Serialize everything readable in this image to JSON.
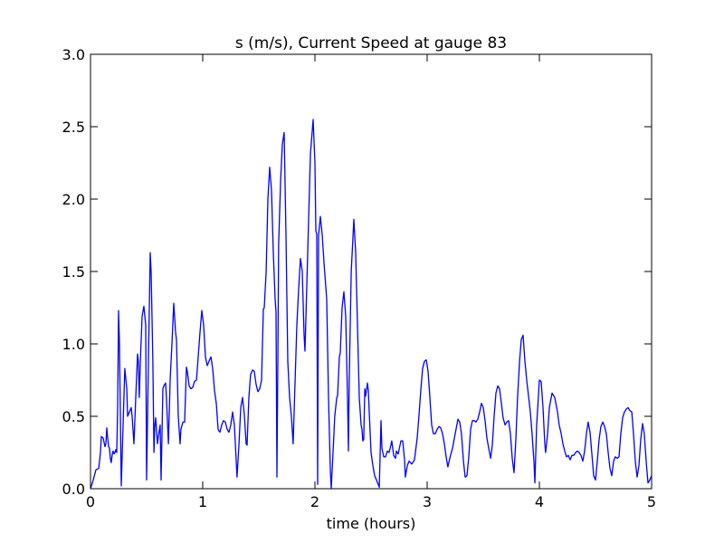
{
  "chart_data": {
    "type": "line",
    "title": "s (m/s), Current Speed at gauge 83",
    "xlabel": "time (hours)",
    "ylabel": "",
    "xlim": [
      0,
      5
    ],
    "ylim": [
      0,
      3.0
    ],
    "xticks": [
      "0",
      "1",
      "2",
      "3",
      "4",
      "5"
    ],
    "yticks": [
      "0.0",
      "0.5",
      "1.0",
      "1.5",
      "2.0",
      "2.5",
      "3.0"
    ],
    "grid": false,
    "series_color": "#0000ff",
    "reference_line": {
      "y": 0,
      "style": "dashed",
      "color": "#000000"
    },
    "x": [
      0,
      0.024,
      0.048,
      0.073,
      0.089,
      0.097,
      0.113,
      0.129,
      0.137,
      0.145,
      0.153,
      0.161,
      0.169,
      0.177,
      0.185,
      0.194,
      0.202,
      0.21,
      0.218,
      0.226,
      0.234,
      0.242,
      0.25,
      0.258,
      0.274,
      0.29,
      0.306,
      0.323,
      0.331,
      0.347,
      0.363,
      0.371,
      0.387,
      0.403,
      0.419,
      0.427,
      0.435,
      0.444,
      0.46,
      0.476,
      0.492,
      0.5,
      0.516,
      0.532,
      0.54,
      0.556,
      0.565,
      0.573,
      0.581,
      0.597,
      0.605,
      0.621,
      0.629,
      0.645,
      0.653,
      0.669,
      0.677,
      0.694,
      0.71,
      0.726,
      0.742,
      0.758,
      0.766,
      0.782,
      0.798,
      0.806,
      0.823,
      0.839,
      0.855,
      0.863,
      0.879,
      0.895,
      0.911,
      0.927,
      0.944,
      0.96,
      0.976,
      0.992,
      1.008,
      1.024,
      1.04,
      1.056,
      1.073,
      1.089,
      1.105,
      1.121,
      1.137,
      1.153,
      1.169,
      1.185,
      1.202,
      1.218,
      1.234,
      1.25,
      1.266,
      1.282,
      1.298,
      1.306,
      1.323,
      1.339,
      1.355,
      1.371,
      1.387,
      1.395,
      1.411,
      1.427,
      1.444,
      1.46,
      1.476,
      1.492,
      1.508,
      1.524,
      1.54,
      1.548,
      1.565,
      1.581,
      1.597,
      1.613,
      1.629,
      1.645,
      1.653,
      1.661,
      1.669,
      1.677,
      1.694,
      1.71,
      1.726,
      1.742,
      1.758,
      1.774,
      1.79,
      1.806,
      1.823,
      1.839,
      1.855,
      1.871,
      1.887,
      1.903,
      1.911,
      1.927,
      1.944,
      1.96,
      1.984,
      2.0,
      2.008,
      2.016,
      2.024,
      2.032,
      2.048,
      2.065,
      2.081,
      2.105,
      2.121,
      2.137,
      2.145,
      2.161,
      2.177,
      2.194,
      2.202,
      2.218,
      2.226,
      2.242,
      2.258,
      2.274,
      2.29,
      2.298,
      2.306,
      2.323,
      2.347,
      2.363,
      2.379,
      2.395,
      2.411,
      2.419,
      2.427,
      2.435,
      2.444,
      2.452,
      2.46,
      2.468,
      2.476,
      2.484,
      2.5,
      2.516,
      2.532,
      2.548,
      2.573,
      2.589,
      2.597,
      2.613,
      2.629,
      2.645,
      2.661,
      2.677,
      2.685,
      2.702,
      2.718,
      2.726,
      2.742,
      2.766,
      2.782,
      2.798,
      2.806,
      2.823,
      2.839,
      2.863,
      2.887,
      2.911,
      2.927,
      2.944,
      2.96,
      2.976,
      2.992,
      3.008,
      3.024,
      3.04,
      3.056,
      3.073,
      3.089,
      3.105,
      3.121,
      3.137,
      3.153,
      3.169,
      3.185,
      3.202,
      3.226,
      3.25,
      3.274,
      3.29,
      3.306,
      3.323,
      3.339,
      3.355,
      3.371,
      3.387,
      3.403,
      3.419,
      3.435,
      3.452,
      3.468,
      3.484,
      3.5,
      3.516,
      3.532,
      3.548,
      3.565,
      3.581,
      3.597,
      3.613,
      3.629,
      3.645,
      3.661,
      3.677,
      3.694,
      3.71,
      3.726,
      3.742,
      3.758,
      3.774,
      3.79,
      3.806,
      3.823,
      3.839,
      3.855,
      3.871,
      3.887,
      3.903,
      3.919,
      3.935,
      3.952,
      3.96,
      3.976,
      4.0,
      4.016,
      4.032,
      4.048,
      4.056,
      4.073,
      4.089,
      4.113,
      4.137,
      4.161,
      4.177,
      4.194,
      4.21,
      4.226,
      4.242,
      4.258,
      4.274,
      4.29,
      4.306,
      4.323,
      4.339,
      4.355,
      4.371,
      4.387,
      4.403,
      4.419,
      4.435,
      4.452,
      4.468,
      4.484,
      4.5,
      4.516,
      4.532,
      4.548,
      4.565,
      4.581,
      4.597,
      4.613,
      4.629,
      4.645,
      4.661,
      4.677,
      4.694,
      4.71,
      4.726,
      4.742,
      4.758,
      4.774,
      4.79,
      4.806,
      4.823,
      4.839,
      4.855,
      4.871,
      4.887,
      4.903,
      4.919,
      4.935,
      4.952,
      4.968,
      4.984,
      5.0
    ],
    "y": [
      0,
      0.06,
      0.13,
      0.14,
      0.25,
      0.36,
      0.35,
      0.29,
      0.31,
      0.42,
      0.35,
      0.29,
      0.28,
      0.21,
      0.18,
      0.24,
      0.26,
      0.24,
      0.25,
      0.27,
      0.25,
      0.56,
      1.23,
      1.0,
      0.02,
      0.44,
      0.83,
      0.69,
      0.5,
      0.53,
      0.56,
      0.5,
      0.31,
      0.63,
      0.93,
      0.88,
      0.63,
      0.88,
      1.19,
      1.26,
      1.13,
      0.06,
      0.88,
      1.63,
      1.5,
      0.88,
      0.25,
      0.44,
      0.49,
      0.31,
      0.36,
      0.44,
      0.06,
      0.69,
      0.71,
      0.73,
      0.63,
      0.31,
      0.75,
      1.0,
      1.28,
      1.08,
      1.03,
      0.5,
      0.31,
      0.41,
      0.46,
      0.46,
      0.84,
      0.81,
      0.71,
      0.69,
      0.7,
      0.74,
      0.75,
      0.91,
      1.08,
      1.23,
      1.13,
      0.91,
      0.85,
      0.88,
      0.91,
      0.83,
      0.68,
      0.59,
      0.41,
      0.39,
      0.44,
      0.47,
      0.46,
      0.41,
      0.39,
      0.44,
      0.53,
      0.44,
      0.19,
      0.08,
      0.31,
      0.56,
      0.63,
      0.51,
      0.31,
      0.3,
      0.63,
      0.79,
      0.82,
      0.81,
      0.72,
      0.67,
      0.69,
      0.75,
      1.24,
      1.25,
      1.5,
      2.0,
      2.22,
      2.06,
      1.63,
      1.31,
      1.22,
      0.08,
      0.88,
      1.69,
      2.13,
      2.38,
      2.46,
      1.75,
      0.88,
      0.63,
      0.5,
      0.31,
      0.75,
      1.13,
      1.38,
      1.59,
      1.5,
      1.06,
      0.95,
      1.38,
      1.88,
      2.31,
      2.55,
      2.25,
      1.78,
      1.76,
      0.03,
      1.75,
      1.88,
      1.75,
      1.56,
      1.31,
      0.63,
      0.13,
      0,
      0.25,
      0.5,
      0.63,
      0.64,
      0.91,
      0.94,
      1.25,
      1.36,
      1.19,
      0.63,
      0.26,
      0.75,
      1.5,
      1.86,
      1.63,
      1.13,
      0.63,
      0.44,
      0.41,
      0.33,
      0.34,
      0.69,
      0.64,
      0.68,
      0.73,
      0.68,
      0.53,
      0.25,
      0.16,
      0.09,
      0.06,
      0.01,
      0.47,
      0.28,
      0.22,
      0.22,
      0.26,
      0.25,
      0.3,
      0.33,
      0.23,
      0.21,
      0.26,
      0.24,
      0.33,
      0.33,
      0.2,
      0.08,
      0.16,
      0.19,
      0.17,
      0.2,
      0.35,
      0.5,
      0.69,
      0.83,
      0.88,
      0.89,
      0.81,
      0.63,
      0.44,
      0.38,
      0.38,
      0.41,
      0.43,
      0.42,
      0.38,
      0.31,
      0.22,
      0.15,
      0.21,
      0.28,
      0.38,
      0.48,
      0.46,
      0.38,
      0.19,
      0.08,
      0.09,
      0.22,
      0.41,
      0.47,
      0.47,
      0.46,
      0.48,
      0.53,
      0.59,
      0.56,
      0.47,
      0.35,
      0.28,
      0.21,
      0.3,
      0.5,
      0.66,
      0.71,
      0.69,
      0.59,
      0.49,
      0.44,
      0.46,
      0.47,
      0.38,
      0.21,
      0.11,
      0.34,
      0.63,
      0.88,
      1.03,
      1.06,
      0.88,
      0.75,
      0.64,
      0.53,
      0.38,
      0.19,
      0.04,
      0.44,
      0.75,
      0.74,
      0.56,
      0.31,
      0.25,
      0.38,
      0.56,
      0.66,
      0.63,
      0.53,
      0.44,
      0.38,
      0.31,
      0.26,
      0.22,
      0.23,
      0.2,
      0.23,
      0.23,
      0.25,
      0.26,
      0.25,
      0.23,
      0.19,
      0.26,
      0.38,
      0.46,
      0.39,
      0.24,
      0.09,
      0.06,
      0.19,
      0.34,
      0.43,
      0.46,
      0.43,
      0.38,
      0.25,
      0.14,
      0.09,
      0.19,
      0.22,
      0.21,
      0.22,
      0.38,
      0.49,
      0.53,
      0.55,
      0.56,
      0.54,
      0.53,
      0.38,
      0.19,
      0.08,
      0.16,
      0.34,
      0.45,
      0.38,
      0.19,
      0.04,
      0.06,
      0.09
    ]
  }
}
